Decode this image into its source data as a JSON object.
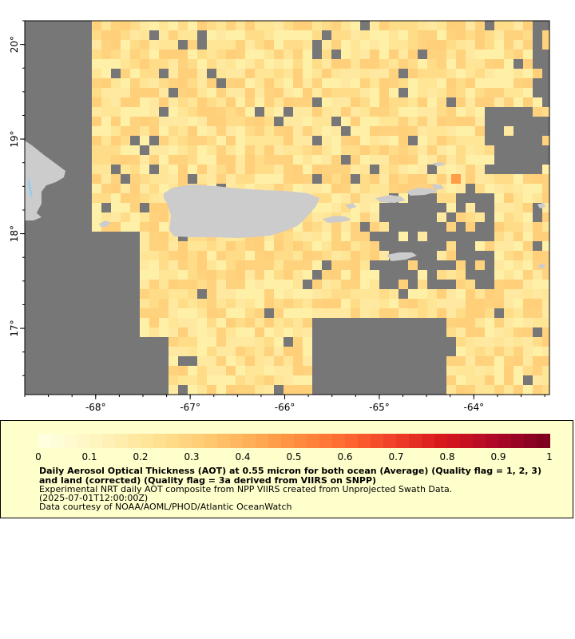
{
  "map": {
    "lon_range": [
      -68.75,
      -63.2
    ],
    "lat_range": [
      16.3,
      20.25
    ],
    "x_ticks": [
      {
        "value": -68,
        "label": "-68°"
      },
      {
        "value": -67,
        "label": "-67°"
      },
      {
        "value": -66,
        "label": "-66°"
      },
      {
        "value": -65,
        "label": "-65°"
      },
      {
        "value": -64,
        "label": "-64°"
      }
    ],
    "y_ticks": [
      {
        "value": 20,
        "label": "20°"
      },
      {
        "value": 19,
        "label": "19°"
      },
      {
        "value": 18,
        "label": "18°"
      },
      {
        "value": 17,
        "label": "17°"
      }
    ],
    "colors": {
      "no_data": "#777777",
      "land": "#cccccc",
      "water": "#99ccee",
      "frame": "#000000"
    }
  },
  "colorbar": {
    "min": 0,
    "max": 1,
    "labels": [
      "0",
      "0.1",
      "0.2",
      "0.3",
      "0.4",
      "0.5",
      "0.6",
      "0.7",
      "0.8",
      "0.9",
      "1"
    ],
    "colors": [
      "#ffffe0",
      "#fff5c0",
      "#ffe69a",
      "#ffd078",
      "#ffb45a",
      "#ff9040",
      "#ff6a30",
      "#f04028",
      "#d8181c",
      "#b00828",
      "#800020"
    ]
  },
  "legend": {
    "title": "Daily Aerosol Optical Thickness (AOT) at 0.55 micron for both ocean (Average) (Quality flag = 1, 2, 3) and land (corrected) (Quality flag = 3a derived from VIIRS on SNPP)",
    "line1": "Experimental NRT daily AOT composite from NPP VIIRS created from Unprojected Swath Data.",
    "line2": "(2025-07-01T12:00:00Z)",
    "line3": "Data courtesy of NOAA/AOML/PHOD/Atlantic OceanWatch"
  }
}
